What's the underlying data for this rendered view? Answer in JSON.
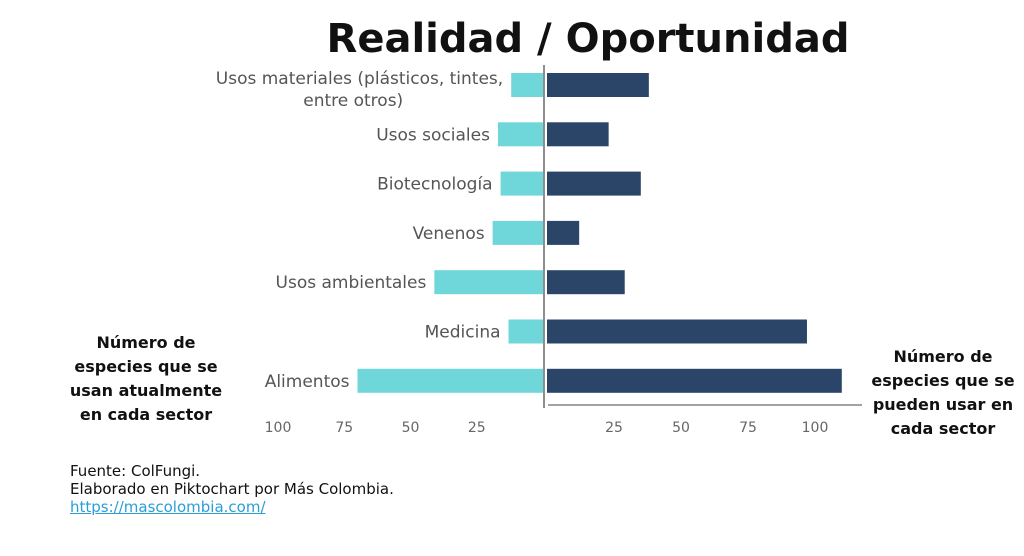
{
  "chart_data": {
    "type": "bar",
    "orientation": "horizontal-diverging",
    "title": "Realidad / Oportunidad",
    "categories": [
      "Usos materiales (plásticos, tintes, entre otros)",
      "Usos sociales",
      "Biotecnología",
      "Venenos",
      "Usos ambientales",
      "Medicina",
      "Alimentos"
    ],
    "category_lines": [
      [
        "Usos materiales (plásticos, tintes,",
        "entre otros)"
      ],
      [
        "Usos sociales"
      ],
      [
        "Biotecnología"
      ],
      [
        "Venenos"
      ],
      [
        "Usos ambientales"
      ],
      [
        "Medicina"
      ],
      [
        "Alimentos"
      ]
    ],
    "series": [
      {
        "name": "Número de especies que se usan atualmente en cada sector",
        "side": "left",
        "color": "#6fd6da",
        "values": [
          12,
          17,
          16,
          19,
          41,
          13,
          70
        ]
      },
      {
        "name": "Número de especies que se pueden usar en cada sector",
        "side": "right",
        "color": "#2b4568",
        "values": [
          38,
          23,
          35,
          12,
          29,
          97,
          110
        ]
      }
    ],
    "left_ticks": [
      "100",
      "75",
      "50",
      "25"
    ],
    "left_tick_values": [
      100,
      75,
      50,
      25
    ],
    "right_ticks": [
      "25",
      "50",
      "75",
      "100"
    ],
    "right_tick_values": [
      25,
      50,
      75,
      100
    ],
    "xlim_left": [
      0,
      100
    ],
    "xlim_right": [
      0,
      110
    ],
    "left_label_lines": [
      "Número de",
      "especies que se",
      "usan atualmente",
      "en cada sector"
    ],
    "right_label_lines": [
      "Número de",
      "especies que se",
      "pueden usar en",
      "cada sector"
    ]
  },
  "footer": {
    "source": "Fuente: ColFungi.",
    "credit": "Elaborado en Piktochart por Más Colombia.",
    "link": "https://mascolombia.com/"
  }
}
